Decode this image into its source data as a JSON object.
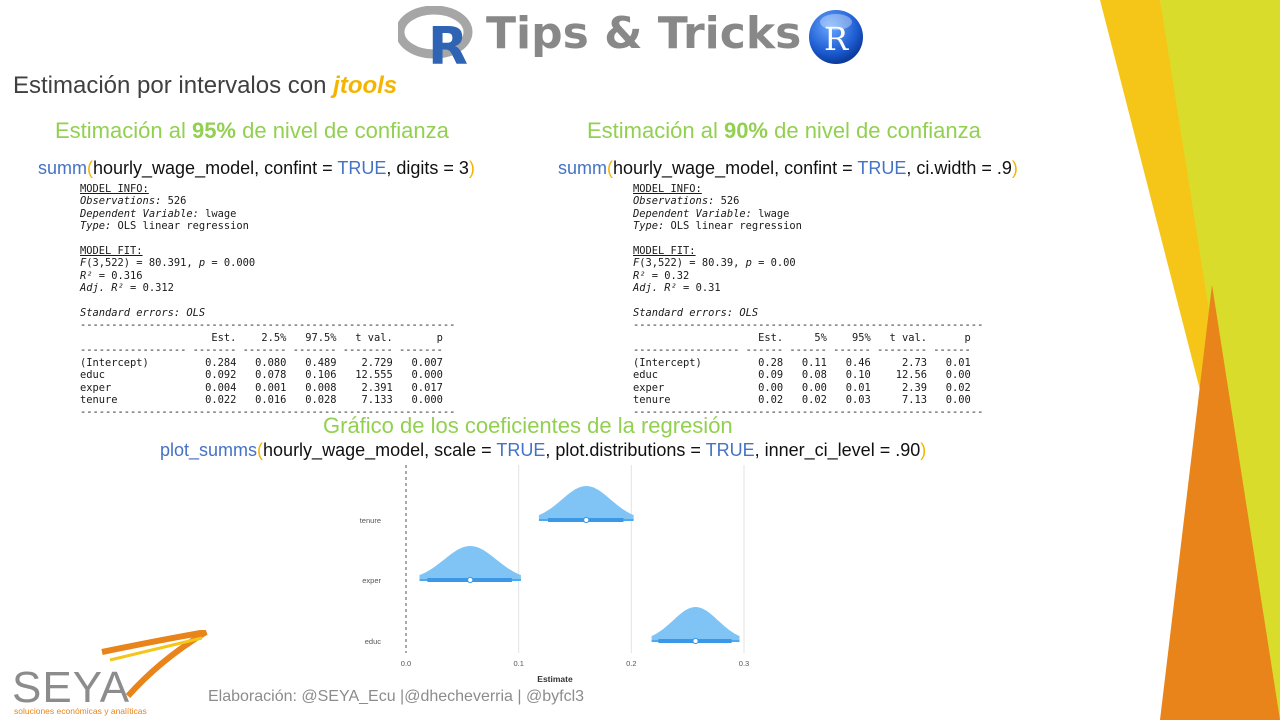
{
  "header": {
    "title": "Tips & Tricks"
  },
  "subtitle": {
    "prefix": "Estimación por intervalos con ",
    "package": "jtools"
  },
  "left_section": {
    "heading_pre": "Estimación al ",
    "heading_bold": "95%",
    "heading_post": " de nivel de confianza",
    "code_fn": "summ",
    "code_open": "(",
    "code_args1": "hourly_wage_model,  confint = ",
    "code_true": "TRUE",
    "code_args2": ", digits = 3",
    "code_close": ")"
  },
  "right_section": {
    "heading_pre": "Estimación al ",
    "heading_bold": "90%",
    "heading_post": " de nivel de confianza",
    "code_fn": "summ",
    "code_open": "(",
    "code_args1": "hourly_wage_model,  confint = ",
    "code_true": "TRUE",
    "code_args2": ", ci.width = .9",
    "code_close": ")"
  },
  "output_left": {
    "model_info_label": "MODEL INFO:",
    "obs_label": "Observations:",
    "obs_value": " 526",
    "dep_label": "Dependent Variable:",
    "dep_value": " lwage",
    "type_label": "Type:",
    "type_value": " OLS linear regression",
    "model_fit_label": "MODEL FIT:",
    "f_label": "F",
    "f_value": "(3,522) = 80.391, ",
    "p_label": "p",
    "p_value": " = 0.000",
    "r2_label": "R²",
    "r2_value": " = 0.316",
    "adjr2_label": "Adj. R²",
    "adjr2_value": " = 0.312",
    "se_label": "Standard errors: OLS",
    "rule": "------------------------------------------------------------",
    "header_row": "                     Est.    2.5%   97.5%   t val.       p",
    "sub_rule": "----------------- ------- ------- ------- -------- -------",
    "rows": [
      "(Intercept)         0.284   0.080   0.489    2.729   0.007",
      "educ                0.092   0.078   0.106   12.555   0.000",
      "exper               0.004   0.001   0.008    2.391   0.017",
      "tenure              0.022   0.016   0.028    7.133   0.000"
    ]
  },
  "output_right": {
    "model_info_label": "MODEL INFO:",
    "obs_label": "Observations:",
    "obs_value": " 526",
    "dep_label": "Dependent Variable:",
    "dep_value": " lwage",
    "type_label": "Type:",
    "type_value": " OLS linear regression",
    "model_fit_label": "MODEL FIT:",
    "f_label": "F",
    "f_value": "(3,522) = 80.39, ",
    "p_label": "p",
    "p_value": " = 0.00",
    "r2_label": "R²",
    "r2_value": " = 0.32",
    "adjr2_label": "Adj. R²",
    "adjr2_value": " = 0.31",
    "se_label": "Standard errors: OLS",
    "rule": "--------------------------------------------------------",
    "header_row": "                    Est.     5%    95%   t val.      p",
    "sub_rule": "----------------- ------ ------ ------ -------- ------",
    "rows": [
      "(Intercept)         0.28   0.11   0.46     2.73   0.01",
      "educ                0.09   0.08   0.10    12.56   0.00",
      "exper               0.00   0.00   0.01     2.39   0.02",
      "tenure              0.02   0.02   0.03     7.13   0.00"
    ]
  },
  "plot_section": {
    "heading": "Gráfico de los coeficientes de la regresión",
    "code_fn": "plot_summs",
    "code_open": "(",
    "code_args1": "hourly_wage_model,  scale = ",
    "code_true1": "TRUE",
    "code_args2": ", plot.distributions = ",
    "code_true2": "TRUE",
    "code_args3": ", inner_ci_level  = .90",
    "code_close": ")"
  },
  "chart_data": {
    "type": "scatter",
    "subtype": "coefficient-distribution",
    "categories": [
      "tenure",
      "exper",
      "educ"
    ],
    "estimates": [
      0.16,
      0.057,
      0.257
    ],
    "ci_outer": [
      [
        0.118,
        0.202
      ],
      [
        0.012,
        0.102
      ],
      [
        0.218,
        0.296
      ]
    ],
    "ci_inner": [
      [
        0.126,
        0.193
      ],
      [
        0.019,
        0.094
      ],
      [
        0.224,
        0.289
      ]
    ],
    "x_ticks": [
      "0.0",
      "0.1",
      "0.2",
      "0.3"
    ],
    "xlim": [
      0.0,
      0.3
    ],
    "xlabel": "Estimate",
    "ylabel": "",
    "grid": true,
    "reference_line": 0,
    "color": "#7fc4f5"
  },
  "footer": {
    "credits": "Elaboración: @SEYA_Ecu |@dhecheverria | @byfcl3"
  },
  "brand": {
    "name": "SEYA",
    "tagline": "soluciones económicas y analíticas",
    "accent_orange": "#e8841a",
    "accent_yellow": "#f5c518",
    "accent_lime": "#d9dc2a",
    "green": "#92d050",
    "blue": "#4472c4"
  }
}
